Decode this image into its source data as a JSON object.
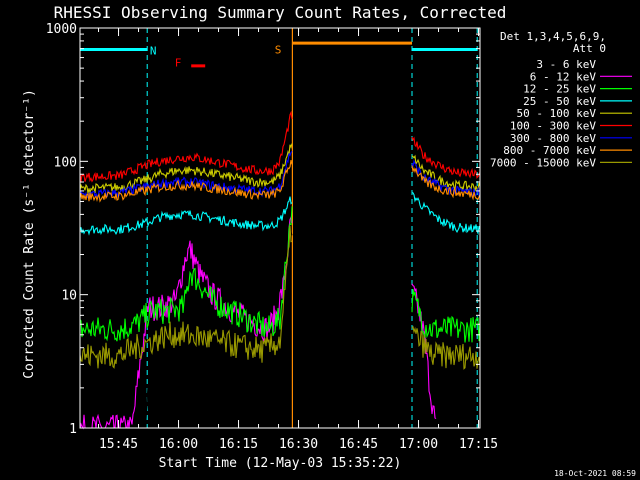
{
  "chart_data": {
    "type": "line",
    "title": "RHESSI Observing Summary Count Rates, Corrected",
    "xlabel": "Start Time (12-May-03 15:35:22)",
    "ylabel": "Corrected Count Rate (s⁻¹ detector⁻¹)",
    "yscale": "log",
    "ylim": [
      1,
      1000
    ],
    "xlim_minutes": [
      0,
      100
    ],
    "x_tick_labels": [
      "15:45",
      "16:00",
      "16:15",
      "16:30",
      "16:45",
      "17:00",
      "17:15"
    ],
    "x_tick_minutes": [
      9.633,
      24.633,
      39.633,
      54.633,
      69.633,
      84.633,
      99.633
    ],
    "y_tick_labels": [
      "1",
      "10",
      "100",
      "1000"
    ],
    "y_tick_values": [
      1,
      10,
      100,
      1000
    ],
    "grid": false,
    "legend_position": "right",
    "legend_header": [
      "Det 1,3,4,5,6,9,",
      "Att 0"
    ],
    "timestamp": "18-Oct-2021 08:59",
    "night_dashed_lines_minutes": [
      0,
      16.8,
      83,
      99.3
    ],
    "data_gaps_minutes": [
      [
        53.1,
        83
      ]
    ],
    "annotations": [
      {
        "label": "N",
        "minute": 18.3,
        "value": 680,
        "color": "#00ffff"
      },
      {
        "label": "F",
        "minute": 24.5,
        "value": 550,
        "color": "#ff0000"
      },
      {
        "label": "S",
        "minute": 49.5,
        "value": 690,
        "color": "#ff8c00"
      }
    ],
    "bars": [
      {
        "name": "night",
        "color": "#00ffff",
        "ranges": [
          [
            0,
            16.8
          ],
          [
            83,
            99.3
          ]
        ],
        "value": 690
      },
      {
        "name": "flare",
        "color": "#ff0000",
        "ranges": [
          [
            27.8,
            31.3
          ]
        ],
        "value": 520
      },
      {
        "name": "saa",
        "color": "#ff8c00",
        "ranges": [
          [
            53.1,
            83
          ]
        ],
        "value": 770
      }
    ],
    "series": [
      {
        "name": "3 - 6 keV",
        "color": "#000000",
        "x": [
          0,
          16.5,
          17,
          21,
          25,
          28,
          30,
          33,
          35,
          38,
          42,
          46,
          50,
          52.7,
          83.5,
          85,
          88,
          90
        ],
        "y": [
          1,
          1,
          2,
          2,
          6,
          6.5,
          3,
          2.5,
          3,
          2,
          2.5,
          3,
          8,
          35,
          1,
          1,
          1,
          1
        ]
      },
      {
        "name": "6 - 12 keV",
        "color": "#ff00ff",
        "x": [
          0,
          13,
          15,
          17,
          20,
          24,
          26.5,
          27.5,
          30,
          33,
          37,
          40,
          44,
          47,
          49,
          51,
          52.7,
          83.5,
          84.5,
          86,
          87.5,
          89
        ],
        "y": [
          1,
          1,
          3,
          8,
          8,
          9,
          20,
          22,
          14,
          10,
          8,
          7,
          6,
          5.5,
          7,
          12,
          35,
          10,
          8,
          5,
          2,
          1
        ]
      },
      {
        "name": "12 - 25 keV",
        "color": "#00ff00",
        "x": [
          0,
          10,
          14,
          18,
          22,
          26,
          27.5,
          30,
          33,
          36,
          40,
          44,
          47,
          50,
          52.7,
          83.5,
          84.5,
          86,
          88,
          100
        ],
        "y": [
          5.5,
          5.5,
          6,
          7.5,
          7.5,
          8,
          15,
          12,
          9,
          8,
          7,
          6,
          5.5,
          6.5,
          40,
          9,
          8,
          6,
          5.5,
          5.5
        ]
      },
      {
        "name": "25 - 50 keV",
        "color": "#00ffff",
        "x": [
          0,
          10,
          16,
          20,
          24,
          28,
          32,
          36,
          40,
          44,
          48,
          50,
          52.7,
          83.5,
          86,
          90,
          94,
          100
        ],
        "y": [
          31,
          31,
          34,
          38,
          40,
          40,
          38,
          36,
          34,
          33,
          33,
          36,
          52,
          55,
          45,
          36,
          32,
          31
        ]
      },
      {
        "name": "50 - 100 keV",
        "color": "#cccc00",
        "x": [
          0,
          10,
          16,
          20,
          24,
          28,
          32,
          36,
          40,
          44,
          48,
          50,
          52.7,
          83.5,
          86,
          90,
          94,
          100
        ],
        "y": [
          62,
          64,
          72,
          80,
          85,
          86,
          82,
          78,
          74,
          70,
          70,
          78,
          130,
          105,
          85,
          72,
          66,
          64
        ]
      },
      {
        "name": "100 - 300 keV",
        "color": "#ff0000",
        "x": [
          0,
          10,
          16,
          20,
          24,
          28,
          32,
          36,
          40,
          44,
          48,
          50,
          52.7,
          83.5,
          86,
          90,
          94,
          100
        ],
        "y": [
          76,
          78,
          92,
          100,
          105,
          108,
          102,
          96,
          90,
          85,
          85,
          100,
          220,
          140,
          110,
          92,
          82,
          79
        ]
      },
      {
        "name": "300 - 800 keV",
        "color": "#0000ff",
        "x": [
          0,
          10,
          16,
          20,
          24,
          28,
          32,
          36,
          40,
          44,
          48,
          50,
          52.7,
          83.5,
          86,
          90,
          94,
          100
        ],
        "y": [
          56,
          58,
          64,
          68,
          70,
          70,
          67,
          64,
          62,
          60,
          60,
          66,
          120,
          95,
          75,
          65,
          60,
          58
        ]
      },
      {
        "name": "800 - 7000 keV",
        "color": "#ff8c00",
        "x": [
          0,
          10,
          16,
          20,
          24,
          28,
          32,
          36,
          40,
          44,
          48,
          50,
          52.7,
          83.5,
          86,
          90,
          94,
          100
        ],
        "y": [
          54,
          55,
          60,
          64,
          66,
          66,
          63,
          61,
          58,
          56,
          56,
          60,
          100,
          90,
          70,
          62,
          58,
          56
        ]
      },
      {
        "name": "7000 - 15000 keV",
        "color": "#999900",
        "x": [
          0,
          10,
          14,
          18,
          22,
          26,
          30,
          34,
          38,
          42,
          46,
          50,
          52.7,
          83.5,
          85,
          88,
          100
        ],
        "y": [
          3.5,
          3.5,
          4,
          4.5,
          5,
          5,
          4.8,
          4.5,
          4.2,
          4,
          3.8,
          4.5,
          30,
          5,
          4.5,
          3.5,
          3.5
        ]
      }
    ]
  }
}
